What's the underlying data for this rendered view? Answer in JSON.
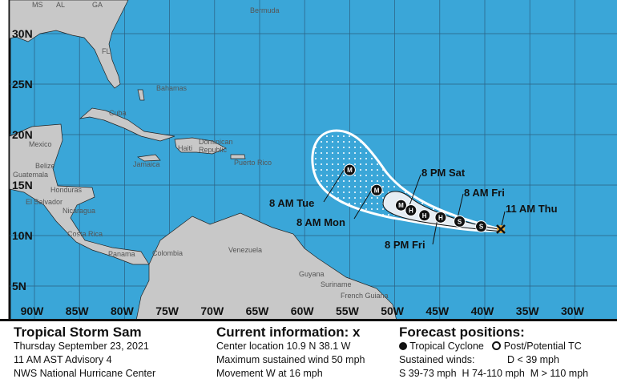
{
  "map": {
    "colors": {
      "ocean": "#3aa6d8",
      "land": "#c8c8c8",
      "cone": "#3aa6d8",
      "inner_cone": "#e6edf3"
    },
    "lat_labels": [
      "30N",
      "25N",
      "20N",
      "15N",
      "10N",
      "5N"
    ],
    "lon_labels": [
      "90W",
      "85W",
      "80W",
      "75W",
      "70W",
      "65W",
      "60W",
      "55W",
      "50W",
      "45W",
      "40W",
      "35W",
      "30W"
    ],
    "place_labels": {
      "ms": "MS",
      "al": "AL",
      "ga": "GA",
      "fl": "FL",
      "bermuda": "Bermuda",
      "bahamas": "Bahamas",
      "cuba": "Cuba",
      "mexico": "Mexico",
      "belize": "Belize",
      "jamaica": "Jamaica",
      "haiti": "Haiti",
      "dominican": "Dominican",
      "republic": "Republic",
      "puerto_rico": "Puerto Rico",
      "guatemala": "Guatemala",
      "honduras": "Honduras",
      "el_salvador": "El Salvador",
      "nicaragua": "Nicaragua",
      "costa_rica": "Costa Rica",
      "panama": "Panama",
      "colombia": "Colombia",
      "venezuela": "Venezuela",
      "guyana": "Guyana",
      "suriname": "Suriname",
      "french_guiana": "French Guiana"
    },
    "forecast_points": [
      {
        "label": "M",
        "lat": 16.5,
        "lon": -55.0
      },
      {
        "label": "M",
        "lat": 14.5,
        "lon": -52.0
      },
      {
        "label": "M",
        "lat": 13.0,
        "lon": -49.3
      },
      {
        "label": "H",
        "lat": 12.5,
        "lon": -48.2
      },
      {
        "label": "H",
        "lat": 12.0,
        "lon": -46.7
      },
      {
        "label": "H",
        "lat": 11.8,
        "lon": -44.9
      },
      {
        "label": "S",
        "lat": 11.4,
        "lon": -42.8
      },
      {
        "label": "S",
        "lat": 10.9,
        "lon": -40.4
      }
    ],
    "current": {
      "label": "x",
      "lat": 10.9,
      "lon": -38.1
    },
    "time_labels": {
      "tue": "8 AM Tue",
      "mon": "8 AM Mon",
      "sat": "8 PM Sat",
      "fri_am": "8 AM Fri",
      "thu": "11 AM Thu",
      "fri_pm": "8 PM Fri"
    }
  },
  "panel": {
    "storm": {
      "title": "Tropical Storm Sam",
      "date": "Thursday September 23, 2021",
      "advisory": "11 AM AST Advisory 4",
      "source": "NWS National Hurricane Center"
    },
    "current": {
      "title": "Current information:",
      "icon": "x-icon",
      "x": "x",
      "location": "Center location 10.9 N 38.1 W",
      "wind": "Maximum sustained wind 50 mph",
      "movement": "Movement W at 16 mph"
    },
    "forecast": {
      "title": "Forecast positions:",
      "tc": "Tropical Cyclone",
      "ptc": "Post/Potential TC",
      "winds": "Sustained winds:",
      "d": "D < 39 mph",
      "scale": "S 39-73 mph  H 74-110 mph  M > 110 mph"
    }
  }
}
